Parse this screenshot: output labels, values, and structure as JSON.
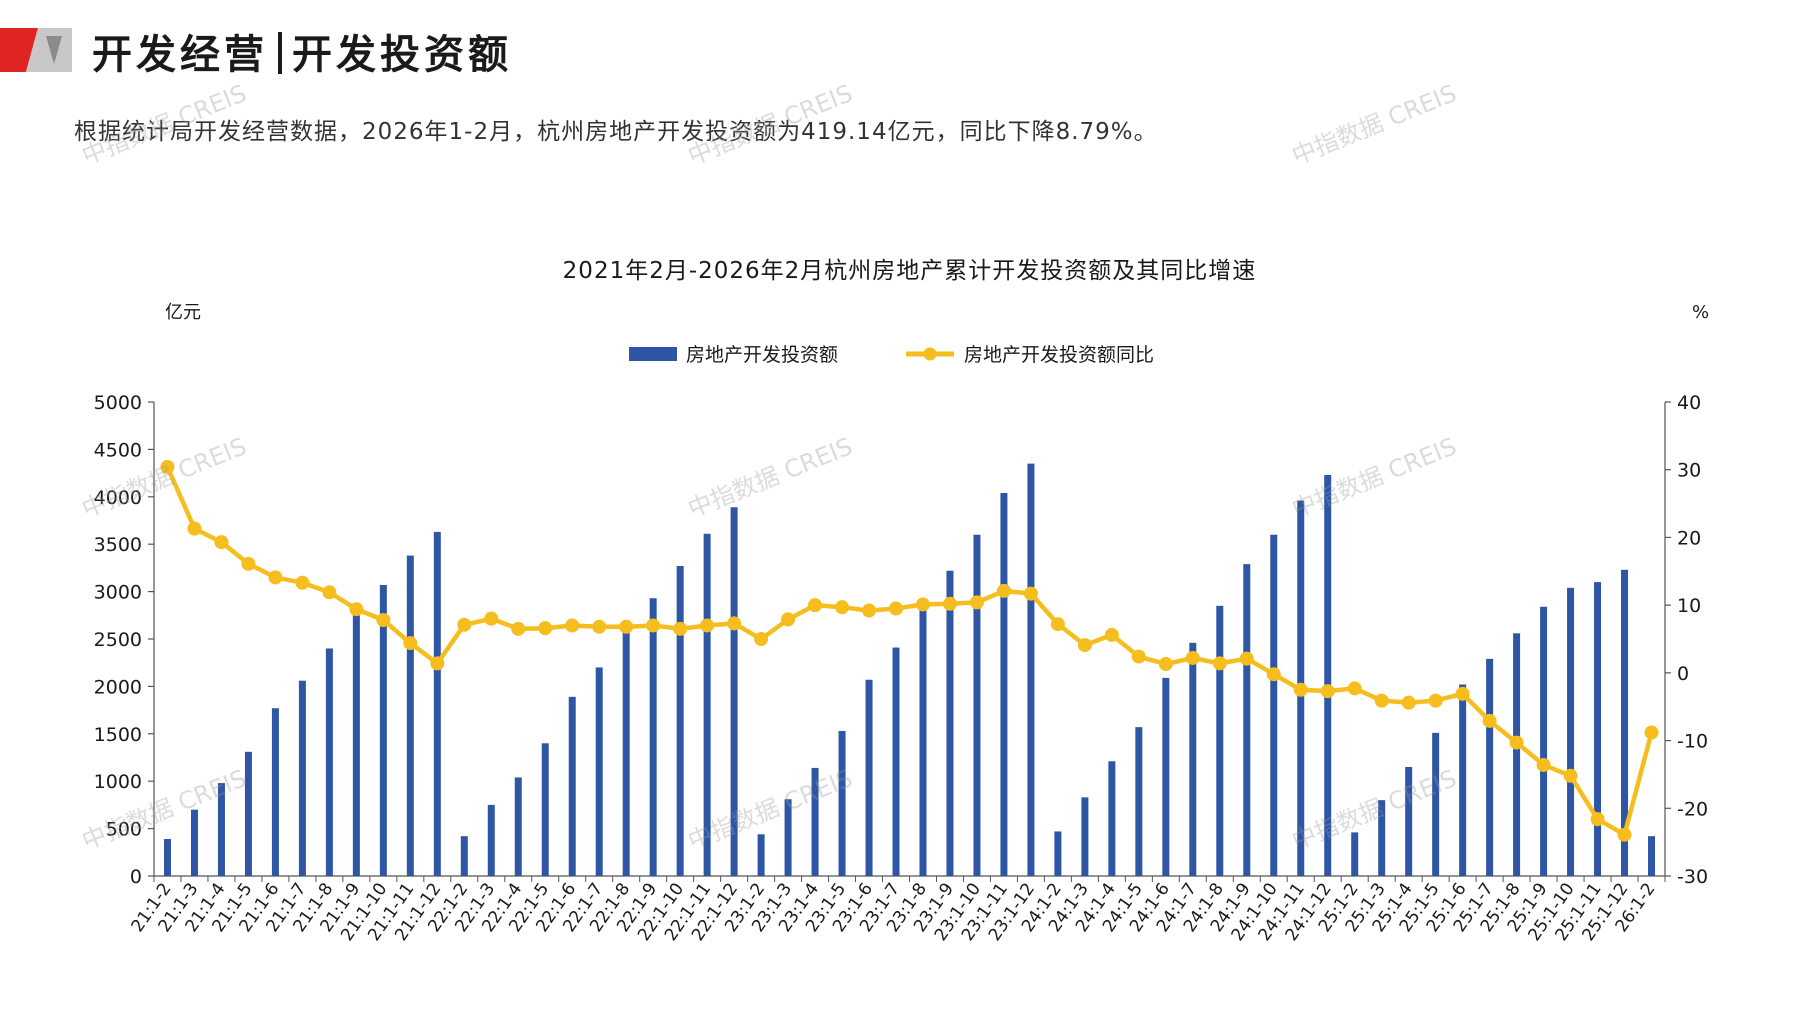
{
  "header": {
    "title_left": "开发经营",
    "title_right": "开发投资额",
    "summary": "根据统计局开发经营数据，2026年1-2月，杭州房地产开发投资额为419.14亿元，同比下降8.79%。"
  },
  "watermark_text": "中指数据 CREIS",
  "colors": {
    "bar": "#2e56a5",
    "line": "#f5bd1e",
    "accent": "#e02424"
  },
  "chart_data": {
    "type": "bar",
    "title": "2021年2月-2026年2月杭州房地产累计开发投资额及其同比增速",
    "ylabel": "亿元",
    "ylabel_right": "%",
    "ylim": [
      0,
      5000
    ],
    "ylim_right": [
      -30,
      40
    ],
    "yticks": [
      0,
      500,
      1000,
      1500,
      2000,
      2500,
      3000,
      3500,
      4000,
      4500,
      5000
    ],
    "yticks_right": [
      -30,
      -20,
      -10,
      0,
      10,
      20,
      30,
      40
    ],
    "legend_position": "top-center",
    "grid": false,
    "categories": [
      "21:1-2",
      "21:1-3",
      "21:1-4",
      "21:1-5",
      "21:1-6",
      "21:1-7",
      "21:1-8",
      "21:1-9",
      "21:1-10",
      "21:1-11",
      "21:1-12",
      "22:1-2",
      "22:1-3",
      "22:1-4",
      "22:1-5",
      "22:1-6",
      "22:1-7",
      "22:1-8",
      "22:1-9",
      "22:1-10",
      "22:1-11",
      "22:1-12",
      "23:1-2",
      "23:1-3",
      "23:1-4",
      "23:1-5",
      "23:1-6",
      "23:1-7",
      "23:1-8",
      "23:1-9",
      "23:1-10",
      "23:1-11",
      "23:1-12",
      "24:1-2",
      "24:1-3",
      "24:1-4",
      "24:1-5",
      "24:1-6",
      "24:1-7",
      "24:1-8",
      "24:1-9",
      "24:1-10",
      "24:1-11",
      "24:1-12",
      "25:1-2",
      "25:1-3",
      "25:1-4",
      "25:1-5",
      "25:1-6",
      "25:1-7",
      "25:1-8",
      "25:1-9",
      "25:1-10",
      "25:1-11",
      "25:1-12",
      "26:1-2"
    ],
    "series": [
      {
        "name": "房地产开发投资额",
        "type": "bar",
        "axis": "left",
        "values": [
          390,
          700,
          980,
          1310,
          1770,
          2060,
          2400,
          2750,
          3070,
          3380,
          3630,
          420,
          750,
          1040,
          1400,
          1890,
          2200,
          2580,
          2930,
          3270,
          3610,
          3890,
          440,
          810,
          1140,
          1530,
          2070,
          2410,
          2860,
          3220,
          3600,
          4040,
          4350,
          470,
          830,
          1210,
          1570,
          2090,
          2460,
          2850,
          3290,
          3600,
          3960,
          4230,
          460,
          800,
          1150,
          1510,
          2020,
          2290,
          2560,
          2840,
          3040,
          3100,
          3230,
          420
        ]
      },
      {
        "name": "房地产开发投资额同比",
        "type": "line",
        "axis": "right",
        "values": [
          30.4,
          21.3,
          19.3,
          16.1,
          14.1,
          13.3,
          11.9,
          9.4,
          7.8,
          4.4,
          1.4,
          7.1,
          8.0,
          6.5,
          6.6,
          7.0,
          6.8,
          6.8,
          7.0,
          6.5,
          7.0,
          7.3,
          5.0,
          7.9,
          10.0,
          9.7,
          9.2,
          9.5,
          10.1,
          10.2,
          10.4,
          12.1,
          11.7,
          7.2,
          4.1,
          5.6,
          2.4,
          1.3,
          2.2,
          1.4,
          2.1,
          -0.2,
          -2.5,
          -2.7,
          -2.3,
          -4.1,
          -4.4,
          -4.1,
          -3.1,
          -7.1,
          -10.3,
          -13.6,
          -15.2,
          -21.6,
          -23.9,
          -8.8
        ]
      }
    ]
  }
}
